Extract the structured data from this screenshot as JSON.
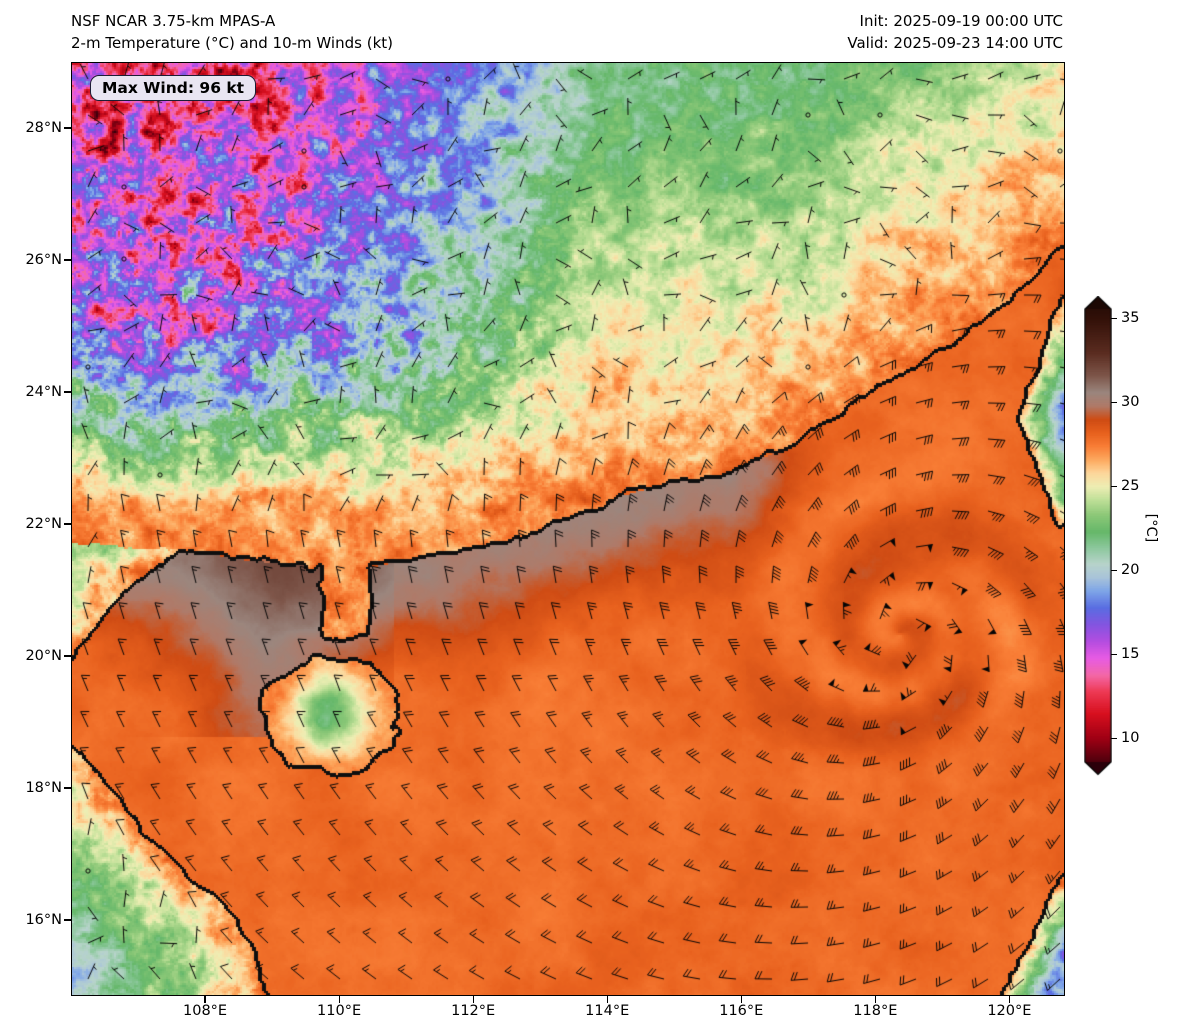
{
  "header": {
    "model_line": "NSF NCAR 3.75-km MPAS-A",
    "field_line": "2-m Temperature (°C) and 10-m Winds (kt)",
    "init_line": "Init: 2025-09-19 00:00 UTC",
    "valid_line": "Valid: 2025-09-23 14:00 UTC"
  },
  "map": {
    "max_wind_label": "Max Wind: 96 kt"
  },
  "axes": {
    "y_ticks": [
      {
        "value": 28,
        "label": "28°N"
      },
      {
        "value": 26,
        "label": "26°N"
      },
      {
        "value": 24,
        "label": "24°N"
      },
      {
        "value": 22,
        "label": "22°N"
      },
      {
        "value": 20,
        "label": "20°N"
      },
      {
        "value": 18,
        "label": "18°N"
      },
      {
        "value": 16,
        "label": "16°N"
      }
    ],
    "x_ticks": [
      {
        "value": 108,
        "label": "108°E"
      },
      {
        "value": 110,
        "label": "110°E"
      },
      {
        "value": 112,
        "label": "112°E"
      },
      {
        "value": 114,
        "label": "114°E"
      },
      {
        "value": 116,
        "label": "116°E"
      },
      {
        "value": 118,
        "label": "118°E"
      },
      {
        "value": 120,
        "label": "120°E"
      }
    ]
  },
  "colorbar": {
    "label": "[°C]",
    "ticks": [
      {
        "value": 35,
        "label": "35"
      },
      {
        "value": 30,
        "label": "30"
      },
      {
        "value": 25,
        "label": "25"
      },
      {
        "value": 20,
        "label": "20"
      },
      {
        "value": 15,
        "label": "15"
      },
      {
        "value": 10,
        "label": "10"
      }
    ]
  },
  "chart_data": {
    "type": "heatmap",
    "title": "2-m Temperature (°C) and 10-m Winds (kt)",
    "model": "NSF NCAR 3.75-km MPAS-A",
    "init_time": "2025-09-19 00:00 UTC",
    "valid_time": "2025-09-23 14:00 UTC",
    "max_wind_kt": 96,
    "units": {
      "temperature": "°C",
      "wind": "kt"
    },
    "lon_range": [
      106.0,
      120.8
    ],
    "lat_range": [
      14.88,
      29.0
    ],
    "x_tick_values": [
      108,
      110,
      112,
      114,
      116,
      118,
      120
    ],
    "y_tick_values": [
      16,
      18,
      20,
      22,
      24,
      26,
      28
    ],
    "colorbar_range": [
      8.6,
      35.55
    ],
    "colorbar_ticks": [
      10,
      15,
      20,
      25,
      30,
      35
    ],
    "colormap_stops": [
      [
        8.0,
        "#2b000a"
      ],
      [
        10.0,
        "#9e0014"
      ],
      [
        11.5,
        "#d8101f"
      ],
      [
        12.8,
        "#ee3a54"
      ],
      [
        13.8,
        "#f468a8"
      ],
      [
        14.8,
        "#e85ce4"
      ],
      [
        15.8,
        "#b44de0"
      ],
      [
        16.8,
        "#8455e0"
      ],
      [
        17.8,
        "#5a6ee2"
      ],
      [
        18.8,
        "#7fa6e8"
      ],
      [
        19.6,
        "#a9c4da"
      ],
      [
        20.4,
        "#b8d4cb"
      ],
      [
        21.3,
        "#8fc9a0"
      ],
      [
        22.3,
        "#66b86a"
      ],
      [
        23.3,
        "#8cc878"
      ],
      [
        24.2,
        "#bfe098"
      ],
      [
        25.0,
        "#eeeeb4"
      ],
      [
        25.8,
        "#fdd79c"
      ],
      [
        26.6,
        "#fdaa60"
      ],
      [
        27.4,
        "#f97e36"
      ],
      [
        28.2,
        "#e8611e"
      ],
      [
        29.0,
        "#cf4c14"
      ],
      [
        29.8,
        "#b07a68"
      ],
      [
        30.6,
        "#9b867e"
      ],
      [
        31.6,
        "#7e564a"
      ],
      [
        33.0,
        "#5a2c20"
      ],
      [
        35.0,
        "#331109"
      ],
      [
        36.5,
        "#1c0804"
      ]
    ],
    "storm": {
      "center_lon": 118.35,
      "center_lat": 20.35,
      "max_wind_kt": 96,
      "rmw_deg": 0.5
    },
    "wind_grid_spacing_px": 36,
    "geo": {
      "china_coast": [
        [
          106.0,
          21.75
        ],
        [
          107.2,
          21.6
        ],
        [
          108.1,
          21.55
        ],
        [
          108.7,
          21.45
        ],
        [
          109.6,
          21.4
        ],
        [
          110.4,
          21.35
        ],
        [
          111.2,
          21.5
        ],
        [
          112.0,
          21.65
        ],
        [
          112.7,
          21.85
        ],
        [
          113.3,
          22.1
        ],
        [
          113.8,
          22.3
        ],
        [
          114.4,
          22.5
        ],
        [
          115.0,
          22.65
        ],
        [
          115.8,
          22.8
        ],
        [
          116.5,
          23.1
        ],
        [
          117.1,
          23.45
        ],
        [
          117.8,
          23.95
        ],
        [
          118.5,
          24.35
        ],
        [
          119.2,
          24.8
        ],
        [
          119.9,
          25.35
        ],
        [
          120.5,
          25.9
        ],
        [
          120.9,
          26.3
        ]
      ],
      "vietnam_coast": [
        [
          14.8,
          108.95
        ],
        [
          15.5,
          108.75
        ],
        [
          16.1,
          108.4
        ],
        [
          16.6,
          107.85
        ],
        [
          17.3,
          107.15
        ],
        [
          18.1,
          106.5
        ],
        [
          18.9,
          105.85
        ],
        [
          19.7,
          105.85
        ],
        [
          20.3,
          106.25
        ],
        [
          21.0,
          106.8
        ],
        [
          21.6,
          107.55
        ],
        [
          21.9,
          108.0
        ]
      ],
      "hainan": {
        "lon": 109.85,
        "lat": 19.12,
        "rx": 1.02,
        "ry": 0.88
      },
      "leizhou": {
        "lon_min": 109.72,
        "lon_max": 110.46,
        "lat_min": 20.28
      },
      "taiwan": {
        "west": 120.12,
        "slope": 0.35,
        "ref_lat": 23.6,
        "lat_min": 21.95,
        "lat_max": 25.5
      },
      "luzon": {
        "west": 119.95,
        "slope": 0.5,
        "lat_max": 16.95
      }
    }
  }
}
